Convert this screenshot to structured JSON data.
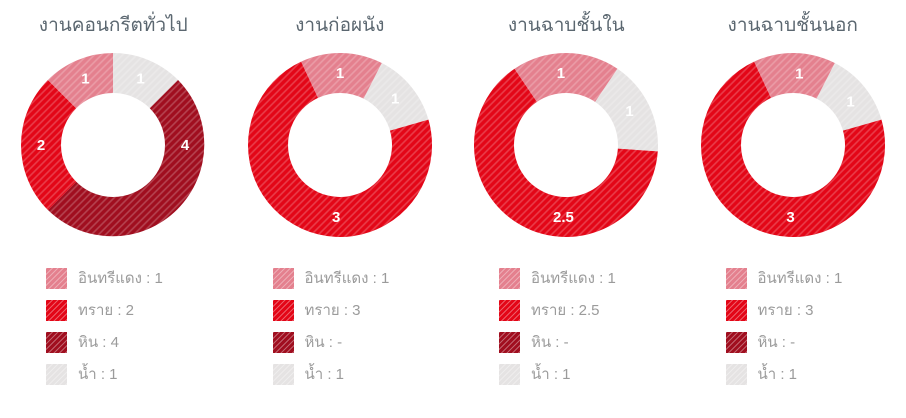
{
  "palette": {
    "insee_red": "#e4808e",
    "sand": "#e30617",
    "stone": "#a00e1f",
    "water": "#e5e3e3"
  },
  "text_colors": {
    "title": "#5b6770",
    "legend": "#9b9b9b",
    "slice_label": "#ffffff"
  },
  "chart_data": [
    {
      "type": "donut",
      "title": "งานคอนกรีตทั่วไป",
      "legend": [
        {
          "key": "insee_red",
          "name": "อินทรีแดง",
          "value": 1,
          "text": "อินทรีแดง : 1"
        },
        {
          "key": "sand",
          "name": "ทราย",
          "value": 2,
          "text": "ทราย : 2"
        },
        {
          "key": "stone",
          "name": "หิน",
          "value": 4,
          "text": "หิน : 4"
        },
        {
          "key": "water",
          "name": "น้ำ",
          "value": 1,
          "text": "น้ำ : 1"
        }
      ],
      "segments": [
        {
          "key": "water",
          "value": 1,
          "label": "1",
          "start_deg": 0,
          "sweep_deg": 45,
          "label_deg": 22.5
        },
        {
          "key": "stone",
          "value": 4,
          "label": "4",
          "start_deg": 45,
          "sweep_deg": 180,
          "label_deg": 90
        },
        {
          "key": "sand",
          "value": 2,
          "label": "2",
          "start_deg": 225,
          "sweep_deg": 90,
          "label_deg": 270
        },
        {
          "key": "insee_red",
          "value": 1,
          "label": "1",
          "start_deg": 315,
          "sweep_deg": 45,
          "label_deg": 337.5
        }
      ]
    },
    {
      "type": "donut",
      "title": "งานก่อผนัง",
      "legend": [
        {
          "key": "insee_red",
          "name": "อินทรีแดง",
          "value": 1,
          "text": "อินทรีแดง : 1"
        },
        {
          "key": "sand",
          "name": "ทราย",
          "value": 3,
          "text": "ทราย : 3"
        },
        {
          "key": "stone",
          "name": "หิน",
          "value": null,
          "text": "หิน : -"
        },
        {
          "key": "water",
          "name": "น้ำ",
          "value": 1,
          "text": "น้ำ : 1"
        }
      ],
      "segments": [
        {
          "key": "water",
          "value": 1,
          "label": "1",
          "start_deg": 27,
          "sweep_deg": 47,
          "label_deg": 50
        },
        {
          "key": "sand",
          "value": 3,
          "label": "3",
          "start_deg": 74,
          "sweep_deg": 261,
          "label_deg": 183
        },
        {
          "key": "insee_red",
          "value": 1,
          "label": "1",
          "start_deg": 335,
          "sweep_deg": 52,
          "label_deg": 0
        }
      ]
    },
    {
      "type": "donut",
      "title": "งานฉาบชั้นใน",
      "legend": [
        {
          "key": "insee_red",
          "name": "อินทรีแดง",
          "value": 1,
          "text": "อินทรีแดง : 1"
        },
        {
          "key": "sand",
          "name": "ทราย",
          "value": 2.5,
          "text": "ทราย : 2.5"
        },
        {
          "key": "stone",
          "name": "หิน",
          "value": null,
          "text": "หิน : -"
        },
        {
          "key": "water",
          "name": "น้ำ",
          "value": 1,
          "text": "น้ำ : 1"
        }
      ],
      "segments": [
        {
          "key": "water",
          "value": 1,
          "label": "1",
          "start_deg": 34,
          "sweep_deg": 60,
          "label_deg": 62
        },
        {
          "key": "sand",
          "value": 2.5,
          "label": "2.5",
          "start_deg": 94,
          "sweep_deg": 232,
          "label_deg": 182
        },
        {
          "key": "insee_red",
          "value": 1,
          "label": "1",
          "start_deg": 326,
          "sweep_deg": 68,
          "label_deg": 356
        }
      ]
    },
    {
      "type": "donut",
      "title": "งานฉาบชั้นนอก",
      "legend": [
        {
          "key": "insee_red",
          "name": "อินทรีแดง",
          "value": 1,
          "text": "อินทรีแดง : 1"
        },
        {
          "key": "sand",
          "name": "ทราย",
          "value": 3,
          "text": "ทราย : 3"
        },
        {
          "key": "stone",
          "name": "หิน",
          "value": null,
          "text": "หิน : -"
        },
        {
          "key": "water",
          "name": "น้ำ",
          "value": 1,
          "text": "น้ำ : 1"
        }
      ],
      "segments": [
        {
          "key": "water",
          "value": 1,
          "label": "1",
          "start_deg": 27,
          "sweep_deg": 47,
          "label_deg": 53
        },
        {
          "key": "sand",
          "value": 3,
          "label": "3",
          "start_deg": 74,
          "sweep_deg": 261,
          "label_deg": 182
        },
        {
          "key": "insee_red",
          "value": 1,
          "label": "1",
          "start_deg": 335,
          "sweep_deg": 52,
          "label_deg": 5
        }
      ]
    }
  ],
  "geometry": {
    "outer_radius": 92,
    "inner_radius": 52,
    "label_radius": 72,
    "size": 190
  }
}
